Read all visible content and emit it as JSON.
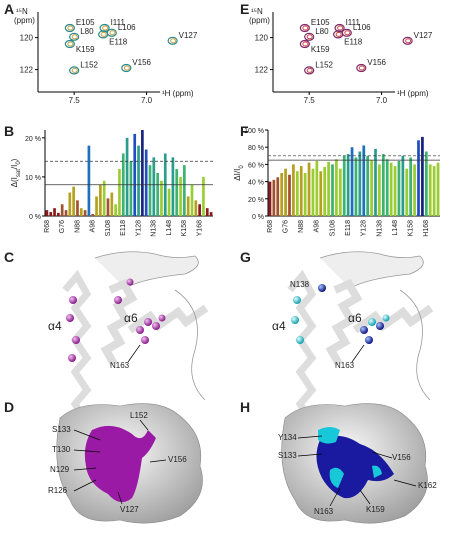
{
  "chart_data": [
    {
      "type": "scatter",
      "panel": "A",
      "xlabel": "¹H (ppm)",
      "ylabel": [
        "¹⁵N",
        "(ppm)"
      ],
      "labels": [
        "E105",
        "L80",
        "K159",
        "I111",
        "L106",
        "E118",
        "V127",
        "V156",
        "L152"
      ],
      "x": [
        7.53,
        7.5,
        7.53,
        7.29,
        7.24,
        7.3,
        6.82,
        7.14,
        7.5
      ],
      "y": [
        119.4,
        119.95,
        120.4,
        119.4,
        119.7,
        119.8,
        120.2,
        121.9,
        122.05
      ],
      "colors": [
        "#2a8a8a",
        "#c8a040"
      ],
      "xlim": [
        7.75,
        6.7
      ],
      "ylim": [
        118.4,
        123.4
      ],
      "xticks": [
        7.5,
        {
          "value": 7,
          "label": "7.0"
        }
      ],
      "yticks": [
        120,
        122
      ]
    },
    {
      "type": "scatter",
      "panel": "E",
      "xlabel": "¹H (ppm)",
      "ylabel": [
        "¹⁵N",
        "(ppm)"
      ],
      "labels": [
        "E105",
        "L80",
        "K159",
        "I111",
        "L106",
        "E118",
        "V127",
        "V156",
        "L152"
      ],
      "x": [
        7.53,
        7.5,
        7.53,
        7.29,
        7.24,
        7.3,
        6.82,
        7.14,
        7.5
      ],
      "y": [
        119.4,
        119.95,
        120.4,
        119.4,
        119.7,
        119.8,
        120.2,
        121.9,
        122.05
      ],
      "colors": [
        "#7a2a6a",
        "#d04040"
      ],
      "xlim": [
        7.75,
        6.7
      ],
      "ylim": [
        118.4,
        123.4
      ],
      "xticks": [
        7.5,
        {
          "value": 7,
          "label": "7.0"
        }
      ],
      "yticks": [
        120,
        122
      ]
    },
    {
      "type": "bar",
      "panel": "B",
      "ylabel": [
        "Δ(I",
        "sat",
        "/I",
        "0",
        ")"
      ],
      "categories": [
        "R68",
        null,
        null,
        null,
        "G76",
        null,
        null,
        null,
        "N88",
        null,
        null,
        null,
        "A98",
        null,
        null,
        null,
        "S108",
        null,
        null,
        null,
        "E118",
        null,
        null,
        null,
        "Y128",
        null,
        null,
        null,
        "N138",
        null,
        null,
        null,
        "L148",
        null,
        null,
        null,
        "K158",
        null,
        null,
        null,
        "Y168",
        null,
        null,
        null
      ],
      "values": [
        1.5,
        1,
        2,
        0.8,
        3,
        1.5,
        6,
        7.5,
        4,
        2,
        1.5,
        18,
        0.5,
        5,
        8,
        9,
        4.5,
        6,
        3,
        12,
        16,
        20,
        14,
        21,
        18,
        22,
        17,
        13,
        15,
        11,
        9,
        16,
        7,
        15,
        12,
        10,
        13,
        5,
        8,
        4,
        3,
        10,
        2,
        1
      ],
      "colors": [
        "#8b1a1a",
        "#8b1a1a",
        "#8b1a1a",
        "#8b1a1a",
        "#a0522d",
        "#a0522d",
        "#b5a020",
        "#b5a020",
        "#a0522d",
        "#b5a020",
        "#a0522d",
        "#1f6fbf",
        "#a0522d",
        "#b5a020",
        "#b5a020",
        "#9acd32",
        "#a0522d",
        "#b5a020",
        "#9acd32",
        "#9acd32",
        "#3cb371",
        "#2a9d8f",
        "#3cb371",
        "#1f4fbf",
        "#2a9d8f",
        "#1a237e",
        "#1f4fbf",
        "#3cb371",
        "#2a9d8f",
        "#3cb371",
        "#9acd32",
        "#2a9d8f",
        "#9acd32",
        "#2a9d8f",
        "#3cb371",
        "#9acd32",
        "#3cb371",
        "#b5a020",
        "#9acd32",
        "#b5a020",
        "#8b1a1a",
        "#9acd32",
        "#8b1a1a",
        "#8b1a1a"
      ],
      "ylim": [
        0,
        22
      ],
      "yticks": [
        {
          "value": 0,
          "label": "0 %"
        },
        {
          "value": 10,
          "label": "10 %"
        },
        {
          "value": 20,
          "label": "20 %"
        }
      ],
      "ref_lines": [
        {
          "value": 14,
          "style": "dashed"
        },
        {
          "value": 8,
          "style": "solid"
        }
      ]
    },
    {
      "type": "bar",
      "panel": "F",
      "ylabel": [
        "ΔI/I",
        "0"
      ],
      "categories": [
        "R68",
        null,
        null,
        null,
        "G76",
        null,
        null,
        null,
        "N88",
        null,
        null,
        null,
        "A98",
        null,
        null,
        null,
        "S108",
        null,
        null,
        null,
        "E118",
        null,
        null,
        null,
        "Y128",
        null,
        null,
        null,
        "N138",
        null,
        null,
        null,
        "L148",
        null,
        null,
        null,
        "K158",
        null,
        null,
        null,
        "H168",
        null,
        null,
        null
      ],
      "values": [
        40,
        42,
        45,
        50,
        55,
        48,
        60,
        52,
        58,
        50,
        62,
        55,
        64,
        52,
        57,
        63,
        60,
        66,
        55,
        70,
        72,
        80,
        68,
        75,
        82,
        70,
        65,
        78,
        60,
        72,
        66,
        62,
        58,
        64,
        70,
        55,
        68,
        60,
        88,
        92,
        75,
        60,
        58,
        62
      ],
      "colors": [
        "#8b1a1a",
        "#a0522d",
        "#a0522d",
        "#b5a020",
        "#b5a020",
        "#a0522d",
        "#b5a020",
        "#9acd32",
        "#b5a020",
        "#9acd32",
        "#b5a020",
        "#9acd32",
        "#9acd32",
        "#b5a020",
        "#9acd32",
        "#9acd32",
        "#3cb371",
        "#9acd32",
        "#9acd32",
        "#3cb371",
        "#2a9d8f",
        "#1f6fbf",
        "#3cb371",
        "#2a9d8f",
        "#1f6fbf",
        "#3cb371",
        "#9acd32",
        "#2a9d8f",
        "#9acd32",
        "#3cb371",
        "#3cb371",
        "#9acd32",
        "#9acd32",
        "#3cb371",
        "#2a9d8f",
        "#9acd32",
        "#3cb371",
        "#9acd32",
        "#1f4fbf",
        "#1a237e",
        "#3cb371",
        "#9acd32",
        "#9acd32",
        "#9acd32"
      ],
      "ylim": [
        0,
        100
      ],
      "yticks": [
        {
          "value": 0,
          "label": "0 %"
        },
        {
          "value": 20,
          "label": "20 %"
        },
        {
          "value": 40,
          "label": "40 %"
        },
        {
          "value": 60,
          "label": "60 %"
        },
        {
          "value": 80,
          "label": "80 %"
        },
        {
          "value": 100,
          "label": "100 %"
        }
      ],
      "ref_lines": [
        {
          "value": 70,
          "style": "dashed"
        },
        {
          "value": 65,
          "style": "solid"
        }
      ]
    }
  ],
  "structures": [
    {
      "panel": "C",
      "labels": [
        "α4",
        "α6",
        "N163"
      ]
    },
    {
      "panel": "G",
      "labels": [
        "N138",
        "α4",
        "α6",
        "N163"
      ]
    },
    {
      "panel": "D",
      "labels": [
        "S133",
        "L152",
        "T130",
        "V156",
        "N129",
        "R126",
        "V127"
      ]
    },
    {
      "panel": "H",
      "labels": [
        "Y134",
        "S133",
        "V156",
        "K162",
        "N163",
        "K159"
      ]
    }
  ]
}
